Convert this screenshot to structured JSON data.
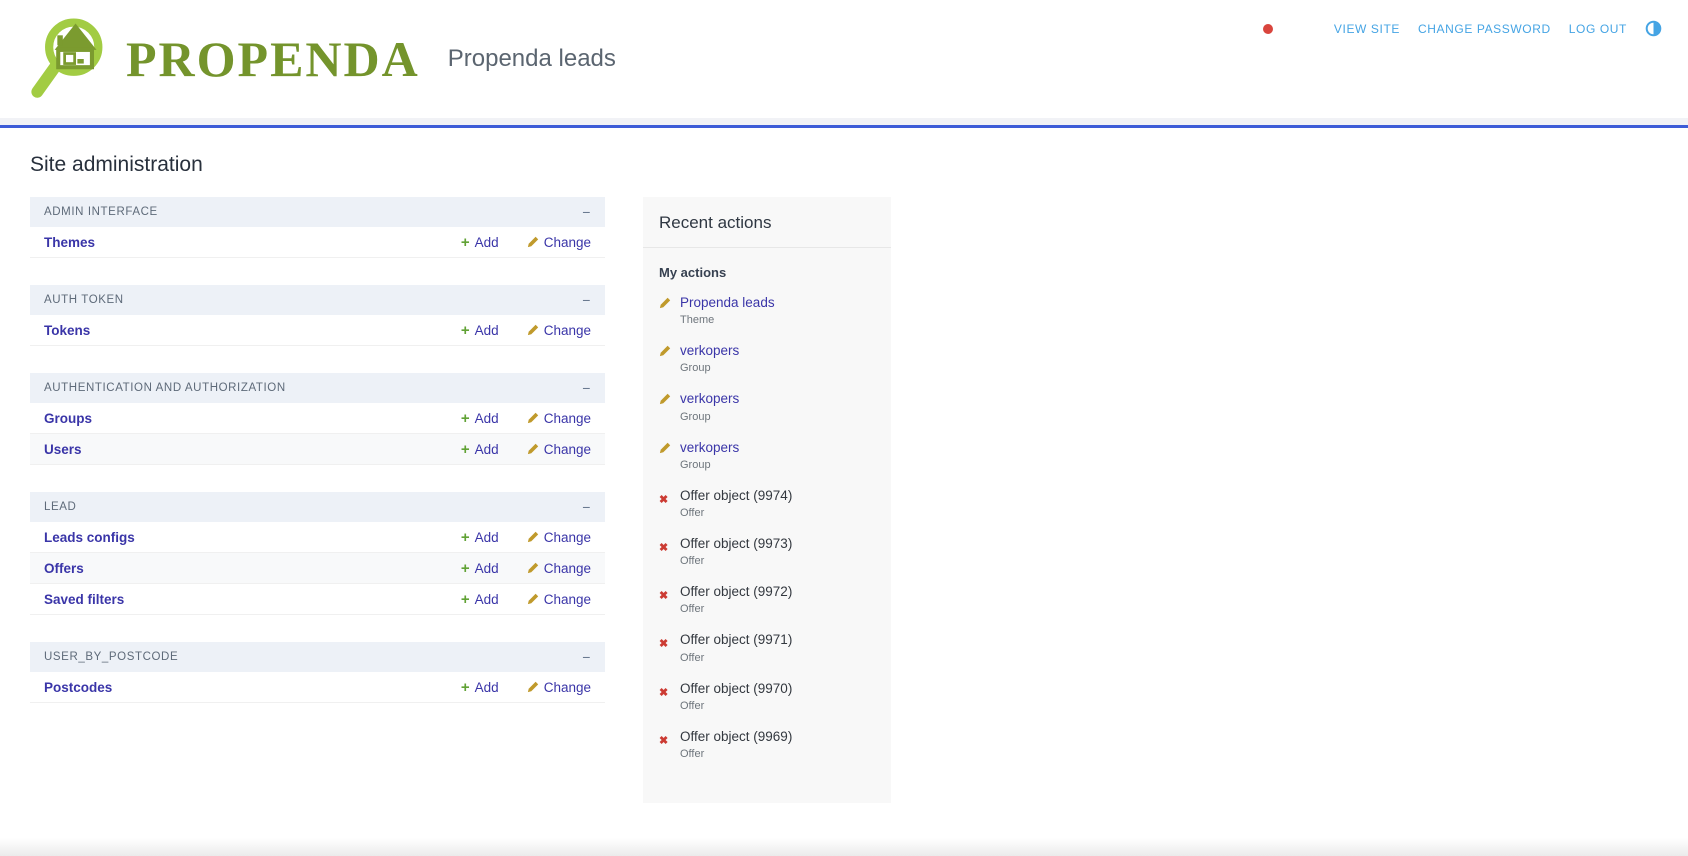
{
  "header": {
    "logo_text": "PROPENDA",
    "site_subtitle": "Propenda leads",
    "user_tools": [
      "VIEW SITE",
      "CHANGE PASSWORD",
      "LOG OUT"
    ],
    "theme_toggle_icon": "half-circle-contrast-icon",
    "notification_dot_color": "#d9453d"
  },
  "page_title": "Site administration",
  "ui": {
    "add_label": "Add",
    "change_label": "Change",
    "collapse_label": "−",
    "add_icon": "plus-icon",
    "change_icon": "pencil-icon",
    "delete_icon": "cross-icon"
  },
  "modules": [
    {
      "caption": "ADMIN INTERFACE",
      "rows": [
        {
          "model": "Themes"
        }
      ]
    },
    {
      "caption": "AUTH TOKEN",
      "rows": [
        {
          "model": "Tokens"
        }
      ]
    },
    {
      "caption": "AUTHENTICATION AND AUTHORIZATION",
      "rows": [
        {
          "model": "Groups"
        },
        {
          "model": "Users"
        }
      ]
    },
    {
      "caption": "LEAD",
      "rows": [
        {
          "model": "Leads configs"
        },
        {
          "model": "Offers"
        },
        {
          "model": "Saved filters"
        }
      ]
    },
    {
      "caption": "USER_BY_POSTCODE",
      "rows": [
        {
          "model": "Postcodes"
        }
      ]
    }
  ],
  "recent_actions": {
    "title": "Recent actions",
    "subtitle": "My actions",
    "items": [
      {
        "icon": "pencil-icon",
        "label": "Propenda leads",
        "type": "Theme",
        "is_link": true
      },
      {
        "icon": "pencil-icon",
        "label": "verkopers",
        "type": "Group",
        "is_link": true
      },
      {
        "icon": "pencil-icon",
        "label": "verkopers",
        "type": "Group",
        "is_link": true
      },
      {
        "icon": "pencil-icon",
        "label": "verkopers",
        "type": "Group",
        "is_link": true
      },
      {
        "icon": "cross-icon",
        "label": "Offer object (9974)",
        "type": "Offer",
        "is_link": false
      },
      {
        "icon": "cross-icon",
        "label": "Offer object (9973)",
        "type": "Offer",
        "is_link": false
      },
      {
        "icon": "cross-icon",
        "label": "Offer object (9972)",
        "type": "Offer",
        "is_link": false
      },
      {
        "icon": "cross-icon",
        "label": "Offer object (9971)",
        "type": "Offer",
        "is_link": false
      },
      {
        "icon": "cross-icon",
        "label": "Offer object (9970)",
        "type": "Offer",
        "is_link": false
      },
      {
        "icon": "cross-icon",
        "label": "Offer object (9969)",
        "type": "Offer",
        "is_link": false
      }
    ]
  },
  "colors": {
    "logo_green": "#74942c",
    "logo_light_green": "#a2cc43",
    "link_indigo": "#3a35a8",
    "header_link_blue": "#45a4e4",
    "rule_blue": "#3d5cd7",
    "caption_bg": "#edf1f7",
    "panel_bg": "#f8f8f8",
    "add_green": "#61a235",
    "pencil_amber": "#c09a2c",
    "delete_red": "#cc3b33"
  }
}
